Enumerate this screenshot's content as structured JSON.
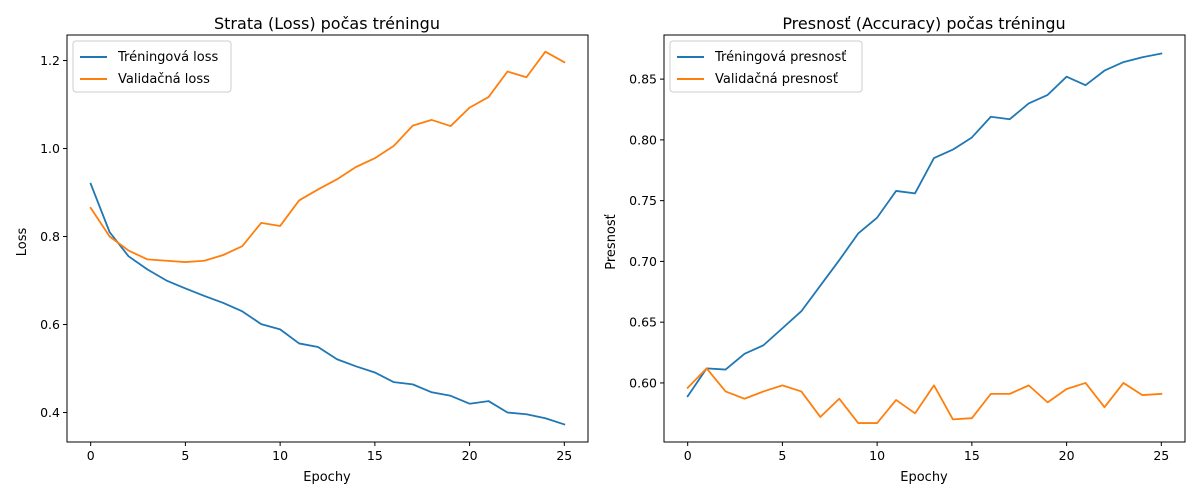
{
  "chart_data": [
    {
      "type": "line",
      "title": "Strata (Loss) počas tréningu",
      "xlabel": "Epochy",
      "ylabel": "Loss",
      "xlim": [
        -1.25,
        26.25
      ],
      "ylim": [
        0.333,
        1.258
      ],
      "xticks": [
        0,
        5,
        10,
        15,
        20,
        25
      ],
      "xtick_labels": [
        "0",
        "5",
        "10",
        "15",
        "20",
        "25"
      ],
      "yticks": [
        0.4,
        0.6,
        0.8,
        1.0,
        1.2
      ],
      "ytick_labels": [
        "0.4",
        "0.6",
        "0.8",
        "1.0",
        "1.2"
      ],
      "grid": false,
      "legend_position": "upper left",
      "x": [
        0,
        1,
        2,
        3,
        4,
        5,
        6,
        7,
        8,
        9,
        10,
        11,
        12,
        13,
        14,
        15,
        16,
        17,
        18,
        19,
        20,
        21,
        22,
        23,
        24,
        25
      ],
      "series": [
        {
          "name": "Tréningová loss",
          "color": "#1f77b4",
          "values": [
            0.92,
            0.81,
            0.755,
            0.725,
            0.7,
            0.682,
            0.665,
            0.649,
            0.63,
            0.601,
            0.589,
            0.557,
            0.549,
            0.521,
            0.505,
            0.491,
            0.469,
            0.464,
            0.446,
            0.438,
            0.42,
            0.426,
            0.4,
            0.396,
            0.387,
            0.373
          ]
        },
        {
          "name": "Validačná loss",
          "color": "#ff7f0e",
          "values": [
            0.865,
            0.8,
            0.768,
            0.748,
            0.745,
            0.742,
            0.745,
            0.758,
            0.778,
            0.831,
            0.824,
            0.882,
            0.907,
            0.93,
            0.958,
            0.978,
            1.006,
            1.052,
            1.065,
            1.051,
            1.093,
            1.117,
            1.175,
            1.162,
            1.22,
            1.196
          ]
        }
      ]
    },
    {
      "type": "line",
      "title": "Presnosť (Accuracy) počas tréningu",
      "xlabel": "Epochy",
      "ylabel": "Presnosť",
      "xlim": [
        -1.25,
        26.25
      ],
      "ylim": [
        0.5514,
        0.8863
      ],
      "xticks": [
        0,
        5,
        10,
        15,
        20,
        25
      ],
      "xtick_labels": [
        "0",
        "5",
        "10",
        "15",
        "20",
        "25"
      ],
      "yticks": [
        0.6,
        0.65,
        0.7,
        0.75,
        0.8,
        0.85
      ],
      "ytick_labels": [
        "0.60",
        "0.65",
        "0.70",
        "0.75",
        "0.80",
        "0.85"
      ],
      "grid": false,
      "legend_position": "upper left",
      "x": [
        0,
        1,
        2,
        3,
        4,
        5,
        6,
        7,
        8,
        9,
        10,
        11,
        12,
        13,
        14,
        15,
        16,
        17,
        18,
        19,
        20,
        21,
        22,
        23,
        24,
        25
      ],
      "series": [
        {
          "name": "Tréningová presnosť",
          "color": "#1f77b4",
          "values": [
            0.589,
            0.612,
            0.611,
            0.624,
            0.631,
            0.645,
            0.659,
            0.68,
            0.701,
            0.723,
            0.736,
            0.758,
            0.756,
            0.785,
            0.792,
            0.802,
            0.819,
            0.817,
            0.83,
            0.837,
            0.852,
            0.845,
            0.857,
            0.864,
            0.868,
            0.871
          ]
        },
        {
          "name": "Validačná presnosť",
          "color": "#ff7f0e",
          "values": [
            0.596,
            0.612,
            0.593,
            0.587,
            0.593,
            0.598,
            0.593,
            0.572,
            0.587,
            0.567,
            0.567,
            0.586,
            0.575,
            0.598,
            0.57,
            0.571,
            0.591,
            0.591,
            0.598,
            0.584,
            0.595,
            0.6,
            0.58,
            0.6,
            0.59,
            0.591
          ]
        }
      ]
    }
  ]
}
